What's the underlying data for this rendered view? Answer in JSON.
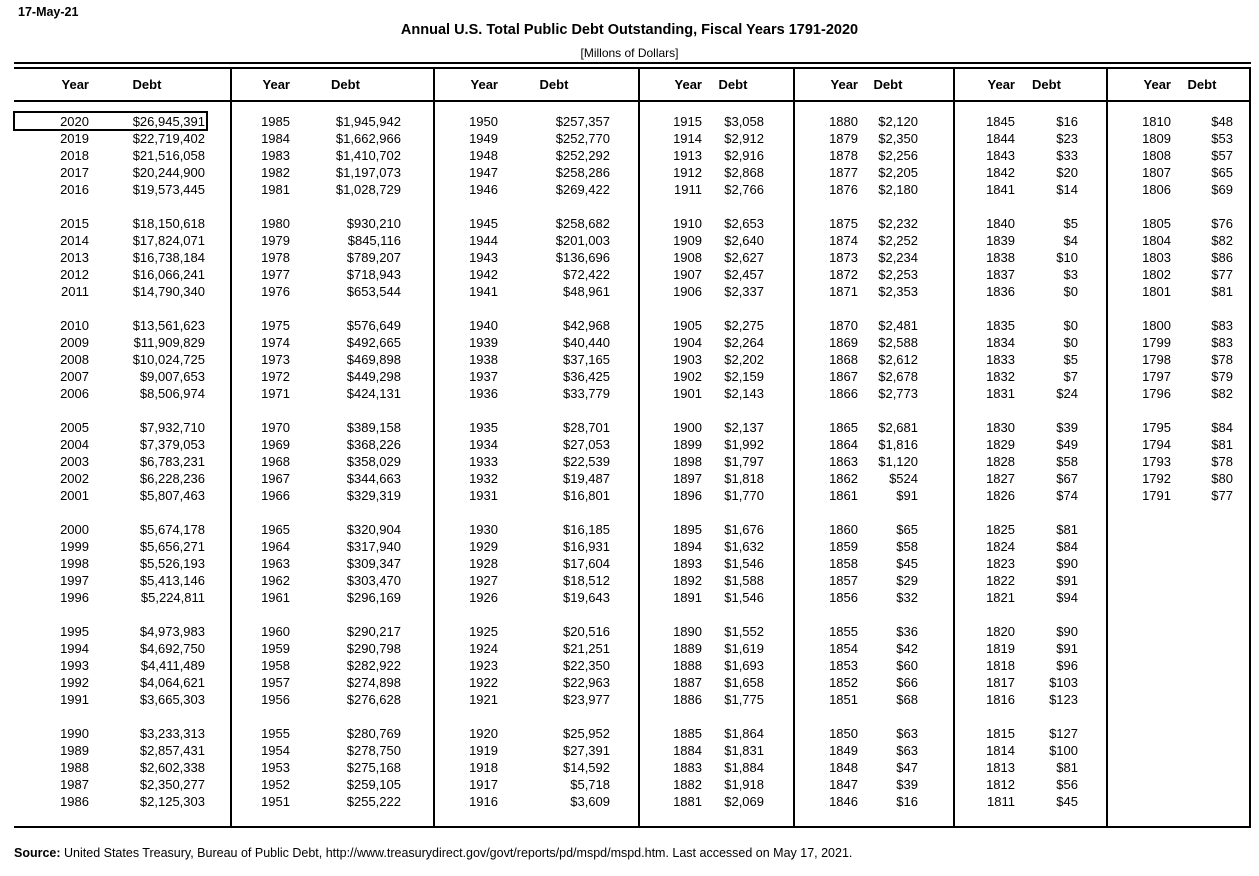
{
  "page": {
    "date": "17-May-21",
    "title": "Annual U.S. Total Public Debt Outstanding, Fiscal Years 1791-2020",
    "subtitle": "[Millons of Dollars]",
    "source_label": "Source:",
    "source_text": " United States Treasury, Bureau of Public Debt, http://www.treasurydirect.gov/govt/reports/pd/mspd/mspd.htm. Last accessed on May 17, 2021."
  },
  "table": {
    "header_year": "Year",
    "header_debt": "Debt",
    "selected_year": "2020",
    "selected_debt": "$26,945,391",
    "groups": [
      {
        "rows": [
          [
            "2020",
            "$26,945,391"
          ],
          [
            "2019",
            "$22,719,402"
          ],
          [
            "2018",
            "$21,516,058"
          ],
          [
            "2017",
            "$20,244,900"
          ],
          [
            "2016",
            "$19,573,445"
          ],
          [
            "2015",
            "$18,150,618"
          ],
          [
            "2014",
            "$17,824,071"
          ],
          [
            "2013",
            "$16,738,184"
          ],
          [
            "2012",
            "$16,066,241"
          ],
          [
            "2011",
            "$14,790,340"
          ],
          [
            "2010",
            "$13,561,623"
          ],
          [
            "2009",
            "$11,909,829"
          ],
          [
            "2008",
            "$10,024,725"
          ],
          [
            "2007",
            "$9,007,653"
          ],
          [
            "2006",
            "$8,506,974"
          ],
          [
            "2005",
            "$7,932,710"
          ],
          [
            "2004",
            "$7,379,053"
          ],
          [
            "2003",
            "$6,783,231"
          ],
          [
            "2002",
            "$6,228,236"
          ],
          [
            "2001",
            "$5,807,463"
          ],
          [
            "2000",
            "$5,674,178"
          ],
          [
            "1999",
            "$5,656,271"
          ],
          [
            "1998",
            "$5,526,193"
          ],
          [
            "1997",
            "$5,413,146"
          ],
          [
            "1996",
            "$5,224,811"
          ],
          [
            "1995",
            "$4,973,983"
          ],
          [
            "1994",
            "$4,692,750"
          ],
          [
            "1993",
            "$4,411,489"
          ],
          [
            "1992",
            "$4,064,621"
          ],
          [
            "1991",
            "$3,665,303"
          ],
          [
            "1990",
            "$3,233,313"
          ],
          [
            "1989",
            "$2,857,431"
          ],
          [
            "1988",
            "$2,602,338"
          ],
          [
            "1987",
            "$2,350,277"
          ],
          [
            "1986",
            "$2,125,303"
          ]
        ]
      },
      {
        "rows": [
          [
            "1985",
            "$1,945,942"
          ],
          [
            "1984",
            "$1,662,966"
          ],
          [
            "1983",
            "$1,410,702"
          ],
          [
            "1982",
            "$1,197,073"
          ],
          [
            "1981",
            "$1,028,729"
          ],
          [
            "1980",
            "$930,210"
          ],
          [
            "1979",
            "$845,116"
          ],
          [
            "1978",
            "$789,207"
          ],
          [
            "1977",
            "$718,943"
          ],
          [
            "1976",
            "$653,544"
          ],
          [
            "1975",
            "$576,649"
          ],
          [
            "1974",
            "$492,665"
          ],
          [
            "1973",
            "$469,898"
          ],
          [
            "1972",
            "$449,298"
          ],
          [
            "1971",
            "$424,131"
          ],
          [
            "1970",
            "$389,158"
          ],
          [
            "1969",
            "$368,226"
          ],
          [
            "1968",
            "$358,029"
          ],
          [
            "1967",
            "$344,663"
          ],
          [
            "1966",
            "$329,319"
          ],
          [
            "1965",
            "$320,904"
          ],
          [
            "1964",
            "$317,940"
          ],
          [
            "1963",
            "$309,347"
          ],
          [
            "1962",
            "$303,470"
          ],
          [
            "1961",
            "$296,169"
          ],
          [
            "1960",
            "$290,217"
          ],
          [
            "1959",
            "$290,798"
          ],
          [
            "1958",
            "$282,922"
          ],
          [
            "1957",
            "$274,898"
          ],
          [
            "1956",
            "$276,628"
          ],
          [
            "1955",
            "$280,769"
          ],
          [
            "1954",
            "$278,750"
          ],
          [
            "1953",
            "$275,168"
          ],
          [
            "1952",
            "$259,105"
          ],
          [
            "1951",
            "$255,222"
          ]
        ]
      },
      {
        "rows": [
          [
            "1950",
            "$257,357"
          ],
          [
            "1949",
            "$252,770"
          ],
          [
            "1948",
            "$252,292"
          ],
          [
            "1947",
            "$258,286"
          ],
          [
            "1946",
            "$269,422"
          ],
          [
            "1945",
            "$258,682"
          ],
          [
            "1944",
            "$201,003"
          ],
          [
            "1943",
            "$136,696"
          ],
          [
            "1942",
            "$72,422"
          ],
          [
            "1941",
            "$48,961"
          ],
          [
            "1940",
            "$42,968"
          ],
          [
            "1939",
            "$40,440"
          ],
          [
            "1938",
            "$37,165"
          ],
          [
            "1937",
            "$36,425"
          ],
          [
            "1936",
            "$33,779"
          ],
          [
            "1935",
            "$28,701"
          ],
          [
            "1934",
            "$27,053"
          ],
          [
            "1933",
            "$22,539"
          ],
          [
            "1932",
            "$19,487"
          ],
          [
            "1931",
            "$16,801"
          ],
          [
            "1930",
            "$16,185"
          ],
          [
            "1929",
            "$16,931"
          ],
          [
            "1928",
            "$17,604"
          ],
          [
            "1927",
            "$18,512"
          ],
          [
            "1926",
            "$19,643"
          ],
          [
            "1925",
            "$20,516"
          ],
          [
            "1924",
            "$21,251"
          ],
          [
            "1923",
            "$22,350"
          ],
          [
            "1922",
            "$22,963"
          ],
          [
            "1921",
            "$23,977"
          ],
          [
            "1920",
            "$25,952"
          ],
          [
            "1919",
            "$27,391"
          ],
          [
            "1918",
            "$14,592"
          ],
          [
            "1917",
            "$5,718"
          ],
          [
            "1916",
            "$3,609"
          ]
        ]
      },
      {
        "rows": [
          [
            "1915",
            "$3,058"
          ],
          [
            "1914",
            "$2,912"
          ],
          [
            "1913",
            "$2,916"
          ],
          [
            "1912",
            "$2,868"
          ],
          [
            "1911",
            "$2,766"
          ],
          [
            "1910",
            "$2,653"
          ],
          [
            "1909",
            "$2,640"
          ],
          [
            "1908",
            "$2,627"
          ],
          [
            "1907",
            "$2,457"
          ],
          [
            "1906",
            "$2,337"
          ],
          [
            "1905",
            "$2,275"
          ],
          [
            "1904",
            "$2,264"
          ],
          [
            "1903",
            "$2,202"
          ],
          [
            "1902",
            "$2,159"
          ],
          [
            "1901",
            "$2,143"
          ],
          [
            "1900",
            "$2,137"
          ],
          [
            "1899",
            "$1,992"
          ],
          [
            "1898",
            "$1,797"
          ],
          [
            "1897",
            "$1,818"
          ],
          [
            "1896",
            "$1,770"
          ],
          [
            "1895",
            "$1,676"
          ],
          [
            "1894",
            "$1,632"
          ],
          [
            "1893",
            "$1,546"
          ],
          [
            "1892",
            "$1,588"
          ],
          [
            "1891",
            "$1,546"
          ],
          [
            "1890",
            "$1,552"
          ],
          [
            "1889",
            "$1,619"
          ],
          [
            "1888",
            "$1,693"
          ],
          [
            "1887",
            "$1,658"
          ],
          [
            "1886",
            "$1,775"
          ],
          [
            "1885",
            "$1,864"
          ],
          [
            "1884",
            "$1,831"
          ],
          [
            "1883",
            "$1,884"
          ],
          [
            "1882",
            "$1,918"
          ],
          [
            "1881",
            "$2,069"
          ]
        ]
      },
      {
        "rows": [
          [
            "1880",
            "$2,120"
          ],
          [
            "1879",
            "$2,350"
          ],
          [
            "1878",
            "$2,256"
          ],
          [
            "1877",
            "$2,205"
          ],
          [
            "1876",
            "$2,180"
          ],
          [
            "1875",
            "$2,232"
          ],
          [
            "1874",
            "$2,252"
          ],
          [
            "1873",
            "$2,234"
          ],
          [
            "1872",
            "$2,253"
          ],
          [
            "1871",
            "$2,353"
          ],
          [
            "1870",
            "$2,481"
          ],
          [
            "1869",
            "$2,588"
          ],
          [
            "1868",
            "$2,612"
          ],
          [
            "1867",
            "$2,678"
          ],
          [
            "1866",
            "$2,773"
          ],
          [
            "1865",
            "$2,681"
          ],
          [
            "1864",
            "$1,816"
          ],
          [
            "1863",
            "$1,120"
          ],
          [
            "1862",
            "$524"
          ],
          [
            "1861",
            "$91"
          ],
          [
            "1860",
            "$65"
          ],
          [
            "1859",
            "$58"
          ],
          [
            "1858",
            "$45"
          ],
          [
            "1857",
            "$29"
          ],
          [
            "1856",
            "$32"
          ],
          [
            "1855",
            "$36"
          ],
          [
            "1854",
            "$42"
          ],
          [
            "1853",
            "$60"
          ],
          [
            "1852",
            "$66"
          ],
          [
            "1851",
            "$68"
          ],
          [
            "1850",
            "$63"
          ],
          [
            "1849",
            "$63"
          ],
          [
            "1848",
            "$47"
          ],
          [
            "1847",
            "$39"
          ],
          [
            "1846",
            "$16"
          ]
        ]
      },
      {
        "rows": [
          [
            "1845",
            "$16"
          ],
          [
            "1844",
            "$23"
          ],
          [
            "1843",
            "$33"
          ],
          [
            "1842",
            "$20"
          ],
          [
            "1841",
            "$14"
          ],
          [
            "1840",
            "$5"
          ],
          [
            "1839",
            "$4"
          ],
          [
            "1838",
            "$10"
          ],
          [
            "1837",
            "$3"
          ],
          [
            "1836",
            "$0"
          ],
          [
            "1835",
            "$0"
          ],
          [
            "1834",
            "$0"
          ],
          [
            "1833",
            "$5"
          ],
          [
            "1832",
            "$7"
          ],
          [
            "1831",
            "$24"
          ],
          [
            "1830",
            "$39"
          ],
          [
            "1829",
            "$49"
          ],
          [
            "1828",
            "$58"
          ],
          [
            "1827",
            "$67"
          ],
          [
            "1826",
            "$74"
          ],
          [
            "1825",
            "$81"
          ],
          [
            "1824",
            "$84"
          ],
          [
            "1823",
            "$90"
          ],
          [
            "1822",
            "$91"
          ],
          [
            "1821",
            "$94"
          ],
          [
            "1820",
            "$90"
          ],
          [
            "1819",
            "$91"
          ],
          [
            "1818",
            "$96"
          ],
          [
            "1817",
            "$103"
          ],
          [
            "1816",
            "$123"
          ],
          [
            "1815",
            "$127"
          ],
          [
            "1814",
            "$100"
          ],
          [
            "1813",
            "$81"
          ],
          [
            "1812",
            "$56"
          ],
          [
            "1811",
            "$45"
          ]
        ]
      },
      {
        "rows": [
          [
            "1810",
            "$48"
          ],
          [
            "1809",
            "$53"
          ],
          [
            "1808",
            "$57"
          ],
          [
            "1807",
            "$65"
          ],
          [
            "1806",
            "$69"
          ],
          [
            "1805",
            "$76"
          ],
          [
            "1804",
            "$82"
          ],
          [
            "1803",
            "$86"
          ],
          [
            "1802",
            "$77"
          ],
          [
            "1801",
            "$81"
          ],
          [
            "1800",
            "$83"
          ],
          [
            "1799",
            "$83"
          ],
          [
            "1798",
            "$78"
          ],
          [
            "1797",
            "$79"
          ],
          [
            "1796",
            "$82"
          ],
          [
            "1795",
            "$84"
          ],
          [
            "1794",
            "$81"
          ],
          [
            "1793",
            "$78"
          ],
          [
            "1792",
            "$80"
          ],
          [
            "1791",
            "$77"
          ]
        ]
      }
    ]
  }
}
